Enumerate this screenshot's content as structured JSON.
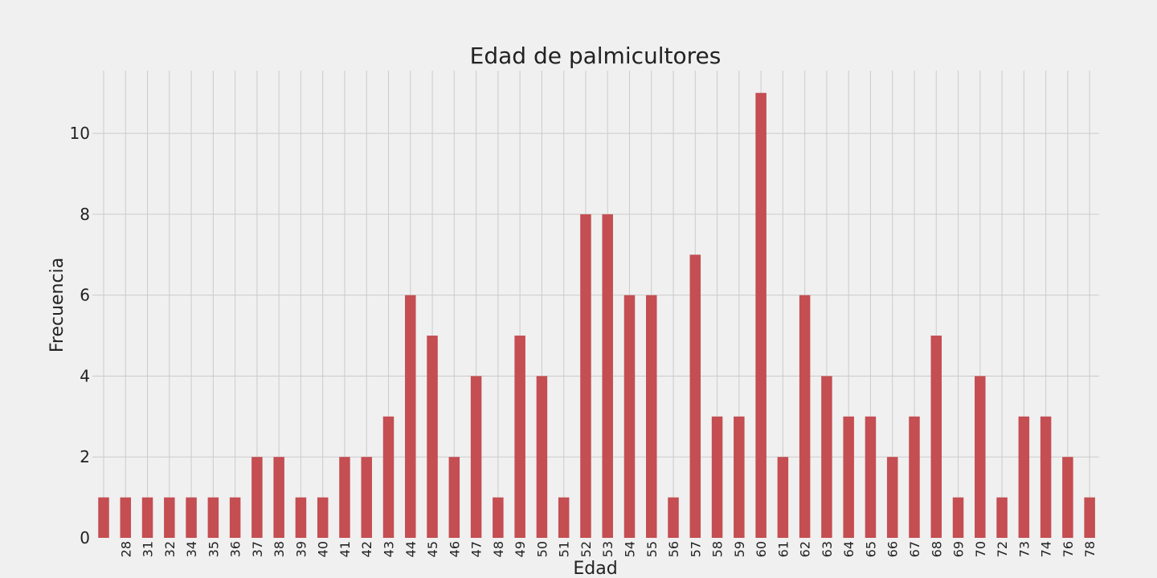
{
  "colors": {
    "background": "#f0f0f0",
    "bar": "#c44e52",
    "grid": "#cbcbcb",
    "text": "#222222"
  },
  "chart_data": {
    "type": "bar",
    "title": "Edad de palmicultores",
    "xlabel": "Edad",
    "ylabel": "Frecuencia",
    "ylim": [
      0,
      11.55
    ],
    "yticks": [
      0,
      2,
      4,
      6,
      8,
      10
    ],
    "grid": true,
    "categories": [
      "",
      "28",
      "31",
      "32",
      "34",
      "35",
      "36",
      "37",
      "38",
      "39",
      "40",
      "41",
      "42",
      "43",
      "44",
      "45",
      "46",
      "47",
      "48",
      "49",
      "50",
      "51",
      "52",
      "53",
      "54",
      "55",
      "56",
      "57",
      "58",
      "59",
      "60",
      "61",
      "62",
      "63",
      "64",
      "65",
      "66",
      "67",
      "68",
      "69",
      "70",
      "72",
      "73",
      "74",
      "76",
      "78"
    ],
    "values": [
      1,
      1,
      1,
      1,
      1,
      1,
      1,
      2,
      2,
      1,
      1,
      2,
      2,
      3,
      6,
      5,
      2,
      4,
      1,
      5,
      4,
      1,
      8,
      8,
      6,
      6,
      1,
      7,
      3,
      3,
      11,
      2,
      6,
      4,
      3,
      3,
      2,
      3,
      5,
      1,
      4,
      1,
      3,
      3,
      2,
      1
    ]
  }
}
